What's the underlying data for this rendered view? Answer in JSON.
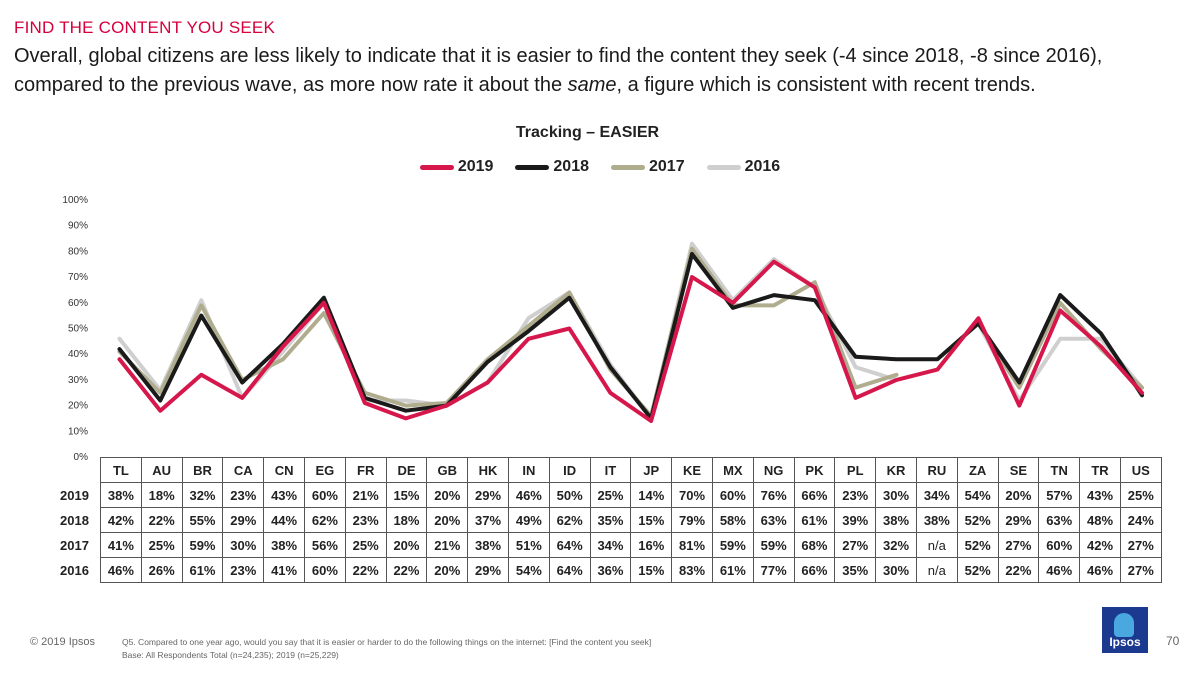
{
  "header": {
    "kicker": "FIND THE CONTENT YOU SEEK",
    "headline_part1": "Overall, global citizens are less likely to indicate that it is easier to find the content they seek (-4 since 2018, -8 since 2016), compared to the previous wave, as more now rate it about the ",
    "headline_emph": "same",
    "headline_part2": ", a figure which is consistent with recent trends."
  },
  "chart_data": {
    "type": "line",
    "title": "Tracking – EASIER",
    "categories": [
      "TL",
      "AU",
      "BR",
      "CA",
      "CN",
      "EG",
      "FR",
      "DE",
      "GB",
      "HK",
      "IN",
      "ID",
      "IT",
      "JP",
      "KE",
      "MX",
      "NG",
      "PK",
      "PL",
      "KR",
      "RU",
      "ZA",
      "SE",
      "TN",
      "TR",
      "US"
    ],
    "ylim": [
      0,
      100
    ],
    "yticks": [
      "0%",
      "10%",
      "20%",
      "30%",
      "40%",
      "50%",
      "60%",
      "70%",
      "80%",
      "90%",
      "100%"
    ],
    "legend_position": "top-center",
    "series": [
      {
        "name": "2019",
        "color": "#d6174b",
        "values": [
          38,
          18,
          32,
          23,
          43,
          60,
          21,
          15,
          20,
          29,
          46,
          50,
          25,
          14,
          70,
          60,
          76,
          66,
          23,
          30,
          34,
          54,
          20,
          57,
          43,
          25
        ],
        "labels": [
          "38%",
          "18%",
          "32%",
          "23%",
          "43%",
          "60%",
          "21%",
          "15%",
          "20%",
          "29%",
          "46%",
          "50%",
          "25%",
          "14%",
          "70%",
          "60%",
          "76%",
          "66%",
          "23%",
          "30%",
          "34%",
          "54%",
          "20%",
          "57%",
          "43%",
          "25%"
        ]
      },
      {
        "name": "2018",
        "color": "#1a1a1a",
        "values": [
          42,
          22,
          55,
          29,
          44,
          62,
          23,
          18,
          20,
          37,
          49,
          62,
          35,
          15,
          79,
          58,
          63,
          61,
          39,
          38,
          38,
          52,
          29,
          63,
          48,
          24
        ],
        "labels": [
          "42%",
          "22%",
          "55%",
          "29%",
          "44%",
          "62%",
          "23%",
          "18%",
          "20%",
          "37%",
          "49%",
          "62%",
          "35%",
          "15%",
          "79%",
          "58%",
          "63%",
          "61%",
          "39%",
          "38%",
          "38%",
          "52%",
          "29%",
          "63%",
          "48%",
          "24%"
        ]
      },
      {
        "name": "2017",
        "color": "#b0ad8f",
        "values": [
          41,
          25,
          59,
          30,
          38,
          56,
          25,
          20,
          21,
          38,
          51,
          64,
          34,
          16,
          81,
          59,
          59,
          68,
          27,
          32,
          null,
          52,
          27,
          60,
          42,
          27
        ],
        "labels": [
          "41%",
          "25%",
          "59%",
          "30%",
          "38%",
          "56%",
          "25%",
          "20%",
          "21%",
          "38%",
          "51%",
          "64%",
          "34%",
          "16%",
          "81%",
          "59%",
          "59%",
          "68%",
          "27%",
          "32%",
          "n/a",
          "52%",
          "27%",
          "60%",
          "42%",
          "27%"
        ]
      },
      {
        "name": "2016",
        "color": "#cfcfcf",
        "values": [
          46,
          26,
          61,
          23,
          41,
          60,
          22,
          22,
          20,
          29,
          54,
          64,
          36,
          15,
          83,
          61,
          77,
          66,
          35,
          30,
          null,
          52,
          22,
          46,
          46,
          27
        ],
        "labels": [
          "46%",
          "26%",
          "61%",
          "23%",
          "41%",
          "60%",
          "22%",
          "22%",
          "20%",
          "29%",
          "54%",
          "64%",
          "36%",
          "15%",
          "83%",
          "61%",
          "77%",
          "66%",
          "35%",
          "30%",
          "n/a",
          "52%",
          "22%",
          "46%",
          "46%",
          "27%"
        ]
      }
    ]
  },
  "footer": {
    "copyright": "© 2019 Ipsos",
    "question": "Q5. Compared to one year ago, would you say that it is easier or harder to do the following things on the internet: [Find the content you seek]",
    "base": "Base: All Respondents Total (n=24,235); 2019 (n=25,229)",
    "logo": "Ipsos",
    "page_number": "70"
  }
}
